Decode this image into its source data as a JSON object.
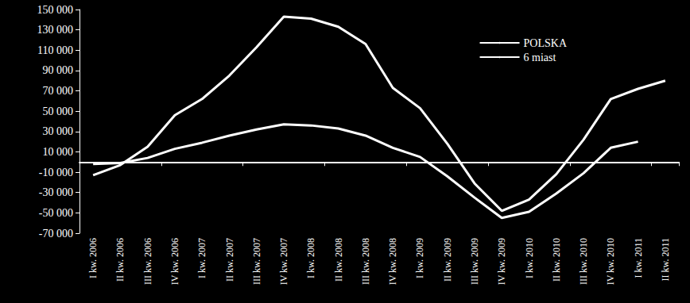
{
  "chart_data": {
    "type": "line",
    "categories": [
      "I kw. 2006",
      "II kw. 2006",
      "III kw. 2006",
      "IV kw. 2006",
      "I kw. 2007",
      "II kw. 2007",
      "III kw. 2007",
      "IV kw. 2007",
      "I kw. 2008",
      "II kw. 2008",
      "III kw. 2008",
      "IV kw. 2008",
      "I kw. 2009",
      "II kw. 2009",
      "III kw. 2009",
      "IV kw. 2009",
      "I kw. 2010",
      "II kw. 2010",
      "III kw. 2010",
      "IV kw. 2010",
      "I kw. 2011",
      "II kw. 2011"
    ],
    "series": [
      {
        "name": "POLSKA",
        "color": "#ffffff",
        "marker": "none",
        "values": [
          -13000,
          -3000,
          15000,
          46000,
          62000,
          85000,
          113000,
          143000,
          141000,
          133000,
          116000,
          73000,
          53000,
          18000,
          -21000,
          -48000,
          -37000,
          -12000,
          22000,
          62000,
          72000,
          80000
        ]
      },
      {
        "name": "6 miast",
        "color": "#ffffff",
        "marker": "none",
        "values": [
          -2000,
          -1000,
          4000,
          13000,
          19000,
          26000,
          32000,
          37000,
          36000,
          33000,
          26000,
          14000,
          5000,
          -14000,
          -35000,
          -55000,
          -49000,
          -31000,
          -11000,
          14000,
          20000,
          null
        ]
      }
    ],
    "ylim": [
      -70000,
      150000
    ],
    "yticks": [
      {
        "value": -70000,
        "label": "-70 000"
      },
      {
        "value": -50000,
        "label": "-50 000"
      },
      {
        "value": -30000,
        "label": "-30 000"
      },
      {
        "value": -10000,
        "label": "-10 000"
      },
      {
        "value": 10000,
        "label": "10 000"
      },
      {
        "value": 30000,
        "label": "30 000"
      },
      {
        "value": 50000,
        "label": "50 000"
      },
      {
        "value": 70000,
        "label": "70 000"
      },
      {
        "value": 90000,
        "label": "90 000"
      },
      {
        "value": 110000,
        "label": "110 000"
      },
      {
        "value": 130000,
        "label": "130 000"
      },
      {
        "value": 150000,
        "label": "150 000"
      }
    ],
    "grid": false,
    "legend": "upper right"
  }
}
